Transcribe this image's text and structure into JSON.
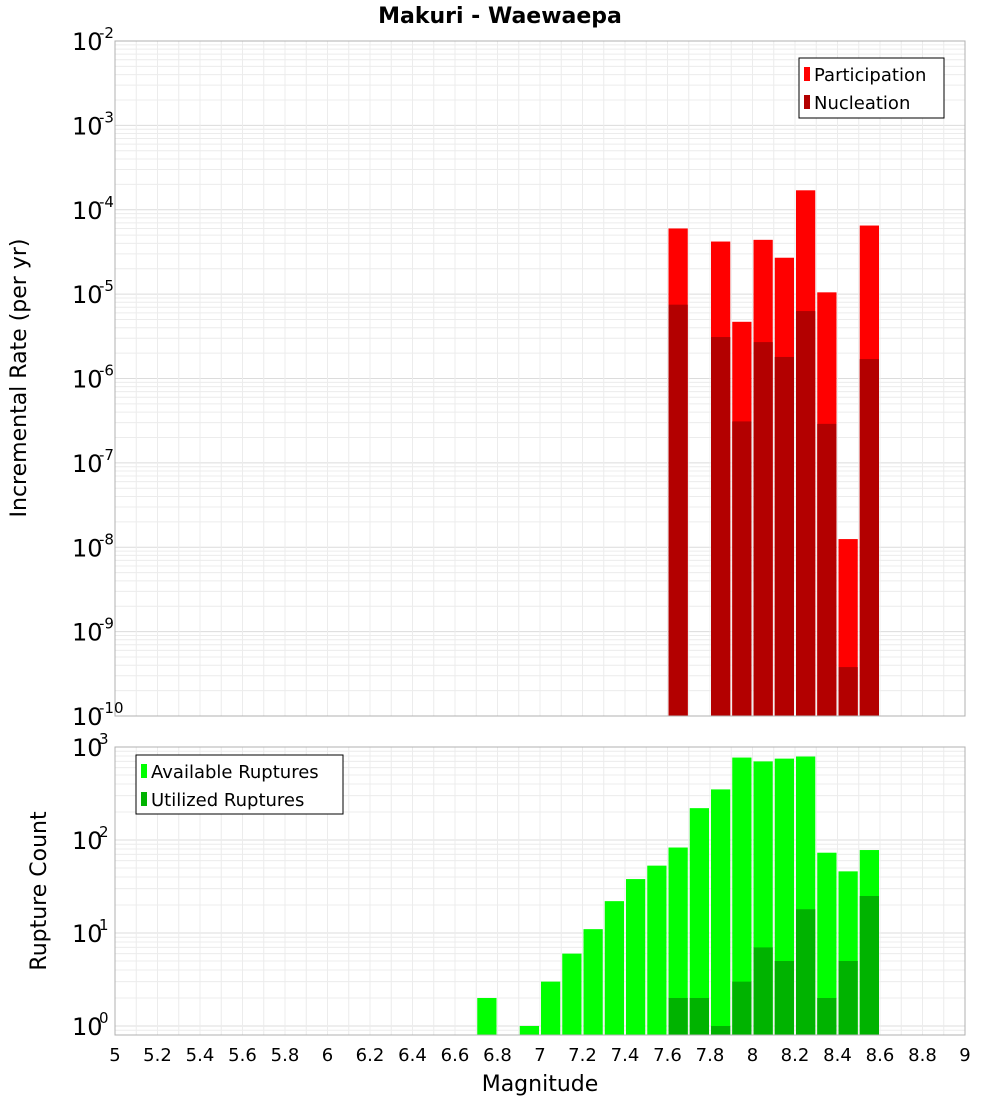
{
  "chart_data": {
    "title": "Makuri - Waewaepa",
    "xlabel": "Magnitude",
    "x_ticks": [
      "5",
      "5.2",
      "5.4",
      "5.6",
      "5.8",
      "6",
      "6.2",
      "6.4",
      "6.6",
      "6.8",
      "7",
      "7.2",
      "7.4",
      "7.6",
      "7.8",
      "8",
      "8.2",
      "8.4",
      "8.6",
      "8.8",
      "9"
    ],
    "xlim": [
      5,
      9
    ],
    "bin_width": 0.1,
    "panels": [
      {
        "type": "bar",
        "yscale": "log",
        "ylabel": "Incremental Rate (per yr)",
        "ylim": [
          1e-10,
          0.01
        ],
        "y_ticks": [
          {
            "base": "10",
            "exp": "-2",
            "value": 0.01
          },
          {
            "base": "10",
            "exp": "-3",
            "value": 0.001
          },
          {
            "base": "10",
            "exp": "-4",
            "value": 0.0001
          },
          {
            "base": "10",
            "exp": "-5",
            "value": 1e-05
          },
          {
            "base": "10",
            "exp": "-6",
            "value": 1e-06
          },
          {
            "base": "10",
            "exp": "-7",
            "value": 1e-07
          },
          {
            "base": "10",
            "exp": "-8",
            "value": 1e-08
          },
          {
            "base": "10",
            "exp": "-9",
            "value": 1e-09
          },
          {
            "base": "10",
            "exp": "-10",
            "value": 1e-10
          }
        ],
        "legend_position": "top-right",
        "series": [
          {
            "name": "Participation",
            "color": "#ff0000",
            "x": [
              7.65,
              7.85,
              7.95,
              8.05,
              8.15,
              8.25,
              8.35,
              8.45,
              8.55
            ],
            "values": [
              6e-05,
              4.2e-05,
              4.7e-06,
              4.4e-05,
              2.7e-05,
              0.00017,
              1.05e-05,
              1.25e-08,
              6.5e-05
            ]
          },
          {
            "name": "Nucleation",
            "color": "#b30000",
            "x": [
              7.65,
              7.85,
              7.95,
              8.05,
              8.15,
              8.25,
              8.35,
              8.45,
              8.55
            ],
            "values": [
              7.5e-06,
              3.1e-06,
              3.1e-07,
              2.7e-06,
              1.8e-06,
              6.3e-06,
              2.9e-07,
              3.8e-10,
              1.7e-06
            ]
          }
        ]
      },
      {
        "type": "bar",
        "yscale": "log",
        "ylabel": "Rupture Count",
        "ylim": [
          0.8,
          1000
        ],
        "y_ticks": [
          {
            "base": "10",
            "exp": "3",
            "value": 1000
          },
          {
            "base": "10",
            "exp": "2",
            "value": 100
          },
          {
            "base": "10",
            "exp": "1",
            "value": 10
          },
          {
            "base": "10",
            "exp": "0",
            "value": 1
          }
        ],
        "legend_position": "top-left",
        "series": [
          {
            "name": "Available Ruptures",
            "color": "#00ff00",
            "x": [
              6.75,
              6.95,
              7.05,
              7.15,
              7.25,
              7.35,
              7.45,
              7.55,
              7.65,
              7.75,
              7.85,
              7.95,
              8.05,
              8.15,
              8.25,
              8.35,
              8.45,
              8.55
            ],
            "values": [
              2,
              1,
              3,
              6,
              11,
              22,
              38,
              53,
              83,
              220,
              350,
              770,
              700,
              750,
              790,
              73,
              46,
              78
            ]
          },
          {
            "name": "Utilized Ruptures",
            "color": "#00b300",
            "x": [
              7.65,
              7.75,
              7.85,
              7.95,
              8.05,
              8.15,
              8.25,
              8.35,
              8.45,
              8.55
            ],
            "values": [
              2,
              2,
              1,
              3,
              7,
              5,
              18,
              2,
              5,
              25
            ]
          }
        ]
      }
    ]
  }
}
